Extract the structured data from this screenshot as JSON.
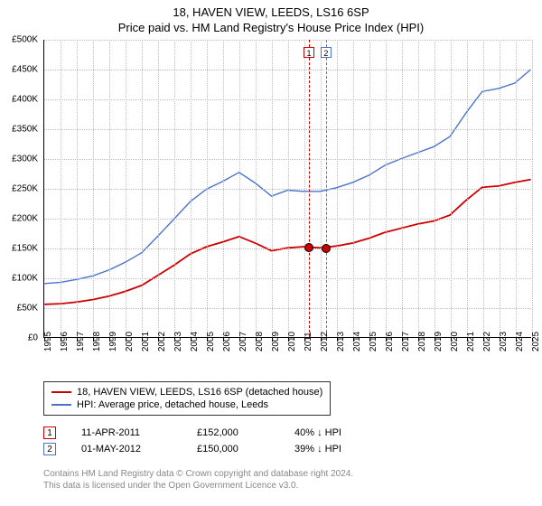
{
  "title": "18, HAVEN VIEW, LEEDS, LS16 6SP",
  "subtitle": "Price paid vs. HM Land Registry's House Price Index (HPI)",
  "chart": {
    "type": "line",
    "background_color": "#ffffff",
    "grid_color": "#bbbbbb",
    "title_fontsize": 13,
    "label_fontsize": 10,
    "x": {
      "min": 1995,
      "max": 2025,
      "tick_step": 1,
      "labels": [
        "1995",
        "1996",
        "1997",
        "1998",
        "1999",
        "2000",
        "2001",
        "2002",
        "2003",
        "2004",
        "2005",
        "2006",
        "2007",
        "2008",
        "2009",
        "2010",
        "2011",
        "2012",
        "2013",
        "2014",
        "2015",
        "2016",
        "2017",
        "2018",
        "2019",
        "2020",
        "2021",
        "2022",
        "2023",
        "2024",
        "2025"
      ]
    },
    "y": {
      "min": 0,
      "max": 500000,
      "tick_step": 50000,
      "labels": [
        "£0",
        "£50K",
        "£100K",
        "£150K",
        "£200K",
        "£250K",
        "£300K",
        "£350K",
        "£400K",
        "£450K",
        "£500K"
      ]
    },
    "series": [
      {
        "id": "price_paid",
        "label": "18, HAVEN VIEW, LEEDS, LS16 6SP (detached house)",
        "color": "#cc0000",
        "line_width": 1.8,
        "x": [
          1995,
          1996,
          1997,
          1998,
          1999,
          2000,
          2001,
          2002,
          2003,
          2004,
          2005,
          2006,
          2007,
          2008,
          2009,
          2010,
          2011,
          2012,
          2013,
          2014,
          2015,
          2016,
          2017,
          2018,
          2019,
          2020,
          2021,
          2022,
          2023,
          2024,
          2025
        ],
        "y": [
          55000,
          56000,
          59000,
          63000,
          69000,
          77000,
          87000,
          104000,
          121000,
          140000,
          152000,
          160000,
          169000,
          158000,
          145000,
          150000,
          152000,
          150000,
          153000,
          158000,
          166000,
          176000,
          183000,
          190000,
          195000,
          205000,
          230000,
          252000,
          254000,
          260000,
          265000
        ]
      },
      {
        "id": "hpi",
        "label": "HPI: Average price, detached house, Leeds",
        "color": "#4a74c9",
        "line_width": 1.4,
        "x": [
          1995,
          1996,
          1997,
          1998,
          1999,
          2000,
          2001,
          2002,
          2003,
          2004,
          2005,
          2006,
          2007,
          2008,
          2009,
          2010,
          2011,
          2012,
          2013,
          2014,
          2015,
          2016,
          2017,
          2018,
          2019,
          2020,
          2021,
          2022,
          2023,
          2024,
          2025
        ],
        "y": [
          90000,
          92000,
          97000,
          103000,
          113000,
          126000,
          142000,
          170000,
          199000,
          228000,
          249000,
          262000,
          277000,
          259000,
          237000,
          247000,
          245000,
          245000,
          251000,
          260000,
          272000,
          289000,
          300000,
          310000,
          320000,
          337000,
          377000,
          413000,
          418000,
          427000,
          450000
        ]
      }
    ],
    "events": [
      {
        "id": "1",
        "x": 2011.28,
        "color": "#cc0000",
        "point_y": 152000
      },
      {
        "id": "2",
        "x": 2012.33,
        "color": "#4a74c9",
        "point_y": 150000
      }
    ],
    "event_marker_top": 8,
    "point_style": {
      "fill": "#cc0000",
      "border": "#000000",
      "radius": 4
    }
  },
  "legend": {
    "rows": [
      {
        "color": "#cc0000",
        "text": "18, HAVEN VIEW, LEEDS, LS16 6SP (detached house)"
      },
      {
        "color": "#4a74c9",
        "text": "HPI: Average price, detached house, Leeds"
      }
    ]
  },
  "sales": [
    {
      "marker": "1",
      "marker_color": "#cc0000",
      "date": "11-APR-2011",
      "price": "£152,000",
      "delta": "40% ↓ HPI"
    },
    {
      "marker": "2",
      "marker_color": "#4a74c9",
      "date": "01-MAY-2012",
      "price": "£150,000",
      "delta": "39% ↓ HPI"
    }
  ],
  "footer": {
    "line1": "Contains HM Land Registry data © Crown copyright and database right 2024.",
    "line2": "This data is licensed under the Open Government Licence v3.0."
  }
}
